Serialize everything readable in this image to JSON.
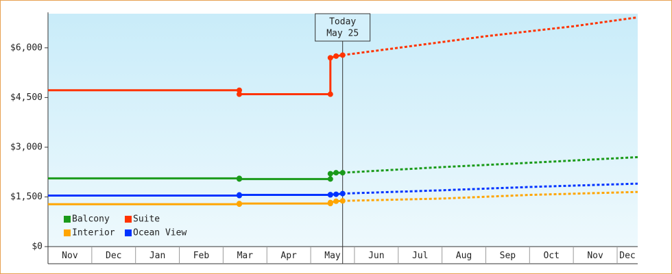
{
  "chart_data": {
    "type": "line",
    "categories": [
      "Nov",
      "Dec",
      "Jan",
      "Feb",
      "Mar",
      "Apr",
      "May",
      "Jun",
      "Jul",
      "Aug",
      "Sep",
      "Oct",
      "Nov",
      "Dec"
    ],
    "xlim": [
      0,
      13.47
    ],
    "ylim": [
      0,
      7030
    ],
    "yticks": [
      {
        "value": 0,
        "label": "$0"
      },
      {
        "value": 1500,
        "label": "$1,500"
      },
      {
        "value": 3000,
        "label": "$3,000"
      },
      {
        "value": 4500,
        "label": "$4,500"
      },
      {
        "value": 6000,
        "label": "$6,000"
      }
    ],
    "today": {
      "x": 6.73,
      "label": [
        "Today",
        "May 25"
      ]
    },
    "series": [
      {
        "name": "Balcony",
        "color": "#1a9a1a",
        "x": [
          0,
          4.37,
          4.37,
          6.45,
          6.45,
          6.58,
          6.73,
          9,
          11,
          13.47
        ],
        "values": [
          2060,
          2060,
          2040,
          2040,
          2200,
          2230,
          2230,
          2400,
          2530,
          2700
        ]
      },
      {
        "name": "Suite",
        "color": "#ff3300",
        "x": [
          0,
          4.37,
          4.37,
          6.45,
          6.45,
          6.58,
          6.73,
          8,
          10,
          12,
          13.47
        ],
        "values": [
          4720,
          4720,
          4600,
          4600,
          5700,
          5750,
          5780,
          6000,
          6350,
          6650,
          6920
        ]
      },
      {
        "name": "Interior",
        "color": "#ffa500",
        "x": [
          0,
          4.37,
          4.37,
          6.45,
          6.45,
          6.58,
          6.73,
          9,
          11,
          13.47
        ],
        "values": [
          1280,
          1280,
          1300,
          1300,
          1330,
          1370,
          1380,
          1450,
          1560,
          1650
        ]
      },
      {
        "name": "Ocean View",
        "color": "#0033ff",
        "x": [
          0,
          4.37,
          4.37,
          6.45,
          6.45,
          6.58,
          6.73,
          9,
          11,
          13.47
        ],
        "values": [
          1540,
          1540,
          1560,
          1560,
          1570,
          1580,
          1600,
          1700,
          1800,
          1900
        ]
      }
    ]
  }
}
